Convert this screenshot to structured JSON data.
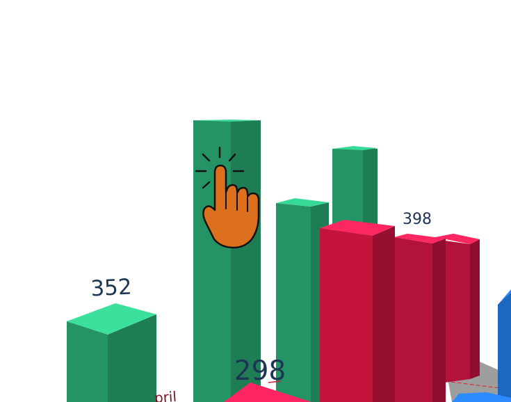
{
  "chart_data": {
    "type": "bar",
    "style": "3d",
    "labels_shown": {
      "green_front": "352",
      "pink_front": "298",
      "red_back": "398"
    },
    "partial_category_text": "pril",
    "series": [
      {
        "color": "#249467",
        "values": [
          352,
          630,
          480,
          560
        ]
      },
      {
        "color": "#c4143c",
        "values": [
          398,
          380,
          360
        ]
      },
      {
        "color": "#ff2460",
        "values": [
          298
        ]
      },
      {
        "color": "#1f79d9",
        "values": []
      }
    ],
    "pointer": {
      "icon": "pointing-hand-icon",
      "color": "#dc701e"
    }
  }
}
